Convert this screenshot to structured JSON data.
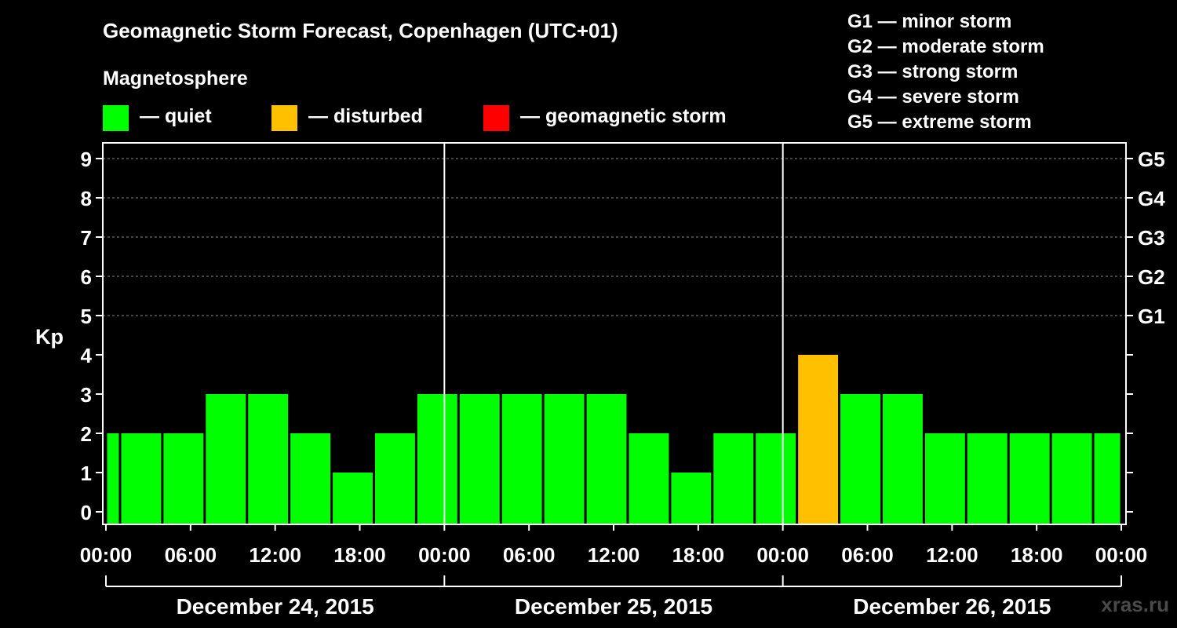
{
  "title": "Geomagnetic Storm Forecast, Copenhagen (UTC+01)",
  "magnetosphere": {
    "heading": "Magnetosphere",
    "items": [
      {
        "label": "— quiet",
        "color": "#00ff00"
      },
      {
        "label": "— disturbed",
        "color": "#ffc000"
      },
      {
        "label": "— geomagnetic storm",
        "color": "#ff0000"
      }
    ]
  },
  "storm_scale": [
    "G1 — minor storm",
    "G2 — moderate storm",
    "G3 — strong storm",
    "G4 — severe storm",
    "G5 — extreme storm"
  ],
  "watermark": "xras.ru",
  "chart_data": {
    "type": "bar",
    "title": "Geomagnetic Storm Forecast, Copenhagen (UTC+01)",
    "ylabel": "Kp",
    "ylim": [
      0,
      9
    ],
    "yticks": [
      "0",
      "1",
      "2",
      "3",
      "4",
      "5",
      "6",
      "7",
      "8",
      "9"
    ],
    "right_ticks": [
      {
        "kp": 5,
        "label": "G1"
      },
      {
        "kp": 6,
        "label": "G2"
      },
      {
        "kp": 7,
        "label": "G3"
      },
      {
        "kp": 8,
        "label": "G4"
      },
      {
        "kp": 9,
        "label": "G5"
      }
    ],
    "x_range_hours": [
      0,
      72
    ],
    "xtick_labels": [
      "00:00",
      "06:00",
      "12:00",
      "18:00",
      "00:00",
      "06:00",
      "12:00",
      "18:00",
      "00:00",
      "06:00",
      "12:00",
      "18:00",
      "00:00"
    ],
    "day_labels": [
      "December 24, 2015",
      "December 25, 2015",
      "December 26, 2015"
    ],
    "series": [
      {
        "name": "Kp",
        "bars": [
          {
            "start": 0,
            "end": 1,
            "value": 2
          },
          {
            "start": 1,
            "end": 4,
            "value": 2
          },
          {
            "start": 4,
            "end": 7,
            "value": 2
          },
          {
            "start": 7,
            "end": 10,
            "value": 3
          },
          {
            "start": 10,
            "end": 13,
            "value": 3
          },
          {
            "start": 13,
            "end": 16,
            "value": 2
          },
          {
            "start": 16,
            "end": 19,
            "value": 1
          },
          {
            "start": 19,
            "end": 22,
            "value": 2
          },
          {
            "start": 22,
            "end": 25,
            "value": 3
          },
          {
            "start": 25,
            "end": 28,
            "value": 3
          },
          {
            "start": 28,
            "end": 31,
            "value": 3
          },
          {
            "start": 31,
            "end": 34,
            "value": 3
          },
          {
            "start": 34,
            "end": 37,
            "value": 3
          },
          {
            "start": 37,
            "end": 40,
            "value": 2
          },
          {
            "start": 40,
            "end": 43,
            "value": 1
          },
          {
            "start": 43,
            "end": 46,
            "value": 2
          },
          {
            "start": 46,
            "end": 49,
            "value": 2
          },
          {
            "start": 49,
            "end": 52,
            "value": 4
          },
          {
            "start": 52,
            "end": 55,
            "value": 3
          },
          {
            "start": 55,
            "end": 58,
            "value": 3
          },
          {
            "start": 58,
            "end": 61,
            "value": 2
          },
          {
            "start": 61,
            "end": 64,
            "value": 2
          },
          {
            "start": 64,
            "end": 67,
            "value": 2
          },
          {
            "start": 67,
            "end": 70,
            "value": 2
          },
          {
            "start": 70,
            "end": 72,
            "value": 2
          }
        ]
      }
    ],
    "thresholds": {
      "quiet_max": 3,
      "disturbed_max": 4
    },
    "colors": {
      "quiet": "#00ff00",
      "disturbed": "#ffc000",
      "storm": "#ff0000"
    }
  }
}
